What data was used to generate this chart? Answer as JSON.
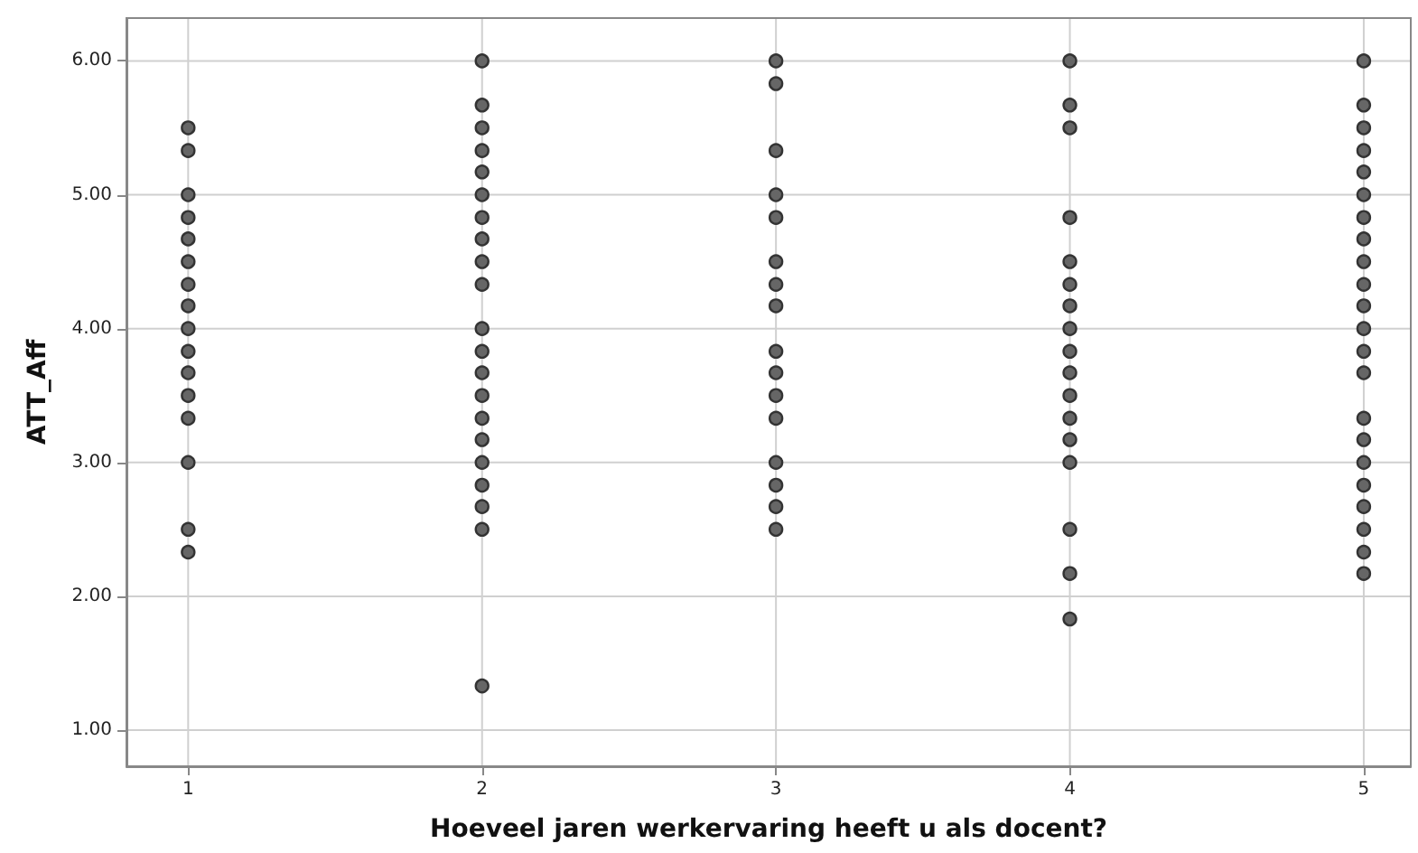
{
  "chart_data": {
    "type": "scatter",
    "xlabel": "Hoeveel jaren werkervaring heeft u als docent?",
    "ylabel": "ATT_Aff",
    "x": [
      1,
      1,
      1,
      1,
      1,
      1,
      1,
      1,
      1,
      1,
      1,
      1,
      1,
      1,
      1,
      1,
      2,
      2,
      2,
      2,
      2,
      2,
      2,
      2,
      2,
      2,
      2,
      2,
      2,
      2,
      2,
      2,
      2,
      2,
      2,
      2,
      2,
      3,
      3,
      3,
      3,
      3,
      3,
      3,
      3,
      3,
      3,
      3,
      3,
      3,
      3,
      3,
      3,
      4,
      4,
      4,
      4,
      4,
      4,
      4,
      4,
      4,
      4,
      4,
      4,
      4,
      4,
      4,
      4,
      4,
      5,
      5,
      5,
      5,
      5,
      5,
      5,
      5,
      5,
      5,
      5,
      5,
      5,
      5,
      5,
      5,
      5,
      5,
      5,
      5,
      5,
      5
    ],
    "values": [
      5.5,
      5.33,
      5,
      4.83,
      4.67,
      4.5,
      4.33,
      4.17,
      4,
      3.83,
      3.67,
      3.5,
      3.33,
      3,
      2.5,
      2.33,
      6,
      5.67,
      5.5,
      5.33,
      5.17,
      5,
      4.83,
      4.67,
      4.5,
      4.33,
      4,
      3.83,
      3.67,
      3.5,
      3.33,
      3.17,
      3,
      2.83,
      2.67,
      2.5,
      1.33,
      6,
      5.83,
      5.33,
      5,
      4.83,
      4.5,
      4.33,
      4.17,
      3.83,
      3.67,
      3.5,
      3.33,
      3,
      2.83,
      2.67,
      2.5,
      6,
      5.67,
      5.5,
      4.83,
      4.5,
      4.33,
      4.17,
      4,
      3.83,
      3.67,
      3.5,
      3.33,
      3.17,
      3,
      2.5,
      2.17,
      1.83,
      6,
      5.67,
      5.5,
      5.33,
      5.17,
      5,
      4.83,
      4.67,
      4.5,
      4.33,
      4.17,
      4,
      3.83,
      3.67,
      3.33,
      3.17,
      3,
      2.83,
      2.67,
      2.5,
      2.33,
      2.17
    ],
    "color": "#666666",
    "marker": "circle",
    "xlim": [
      0.79,
      5.16
    ],
    "xticks": [
      1,
      2,
      3,
      4,
      5
    ],
    "ylim": [
      0.73,
      6.32
    ],
    "yticks": [
      {
        "value": 1,
        "label": "1.00"
      },
      {
        "value": 2,
        "label": "2.00"
      },
      {
        "value": 3,
        "label": "3.00"
      },
      {
        "value": 4,
        "label": "4.00"
      },
      {
        "value": 5,
        "label": "5.00"
      },
      {
        "value": 6,
        "label": "6.00"
      }
    ],
    "grid": true
  }
}
